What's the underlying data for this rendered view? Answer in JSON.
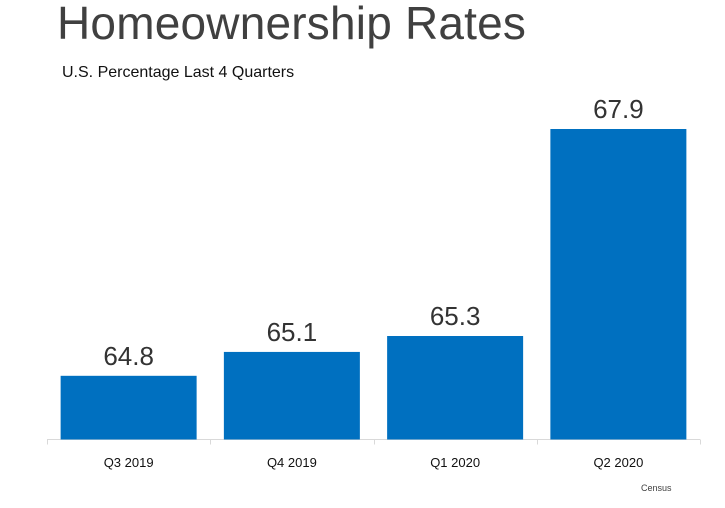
{
  "header": {
    "title": "Homeownership Rates",
    "subtitle": "U.S. Percentage Last 4 Quarters"
  },
  "footer": {
    "source": "Census"
  },
  "colors": {
    "bar": "#0070C0",
    "axis": "#d9d9d9",
    "label": "#333333",
    "tick": "#111111"
  },
  "chart_data": {
    "type": "bar",
    "title": "Homeownership Rates",
    "subtitle": "U.S. Percentage Last 4 Quarters",
    "categories": [
      "Q3 2019",
      "Q4 2019",
      "Q1 2020",
      "Q2 2020"
    ],
    "values": [
      64.8,
      65.1,
      65.3,
      67.9
    ],
    "data_labels": [
      "64.8",
      "65.1",
      "65.3",
      "67.9"
    ],
    "xlabel": "",
    "ylabel": "",
    "ylim": [
      64.0,
      68.0
    ],
    "grid": false,
    "legend": "none",
    "yaxis_visible": false
  }
}
